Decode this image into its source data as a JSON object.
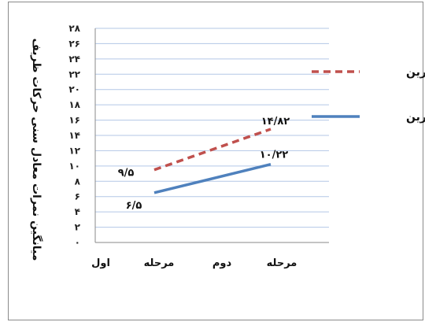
{
  "chart_data": {
    "type": "line",
    "ylabel": "میانگین نمرات معادل سنی حرکات ظریف",
    "ylim": [
      0,
      28
    ],
    "yticks": [
      "۰",
      "۲",
      "۴",
      "۶",
      "۸",
      "۱۰",
      "۱۲",
      "۱۴",
      "۱۶",
      "۱۸",
      "۲۰",
      "۲۲",
      "۲۴",
      "۲۶",
      "۲۸"
    ],
    "categories": [
      "مرحله اول",
      "مرحله دوم"
    ],
    "x_tick_words": [
      "مرحله",
      "اول",
      "مرحله",
      "دوم"
    ],
    "grid": true,
    "legend_position": "right",
    "series": [
      {
        "name": "تمرین",
        "values": [
          9.5,
          14.82
        ],
        "labels": [
          "۹/۵",
          "۱۴/۸۲"
        ],
        "color": "#c0504d",
        "style": "dashed"
      },
      {
        "name": "بی تمرین",
        "values": [
          6.5,
          10.22
        ],
        "labels": [
          "۶/۵",
          "۱۰/۲۲"
        ],
        "color": "#4f81bd",
        "style": "solid"
      }
    ]
  }
}
